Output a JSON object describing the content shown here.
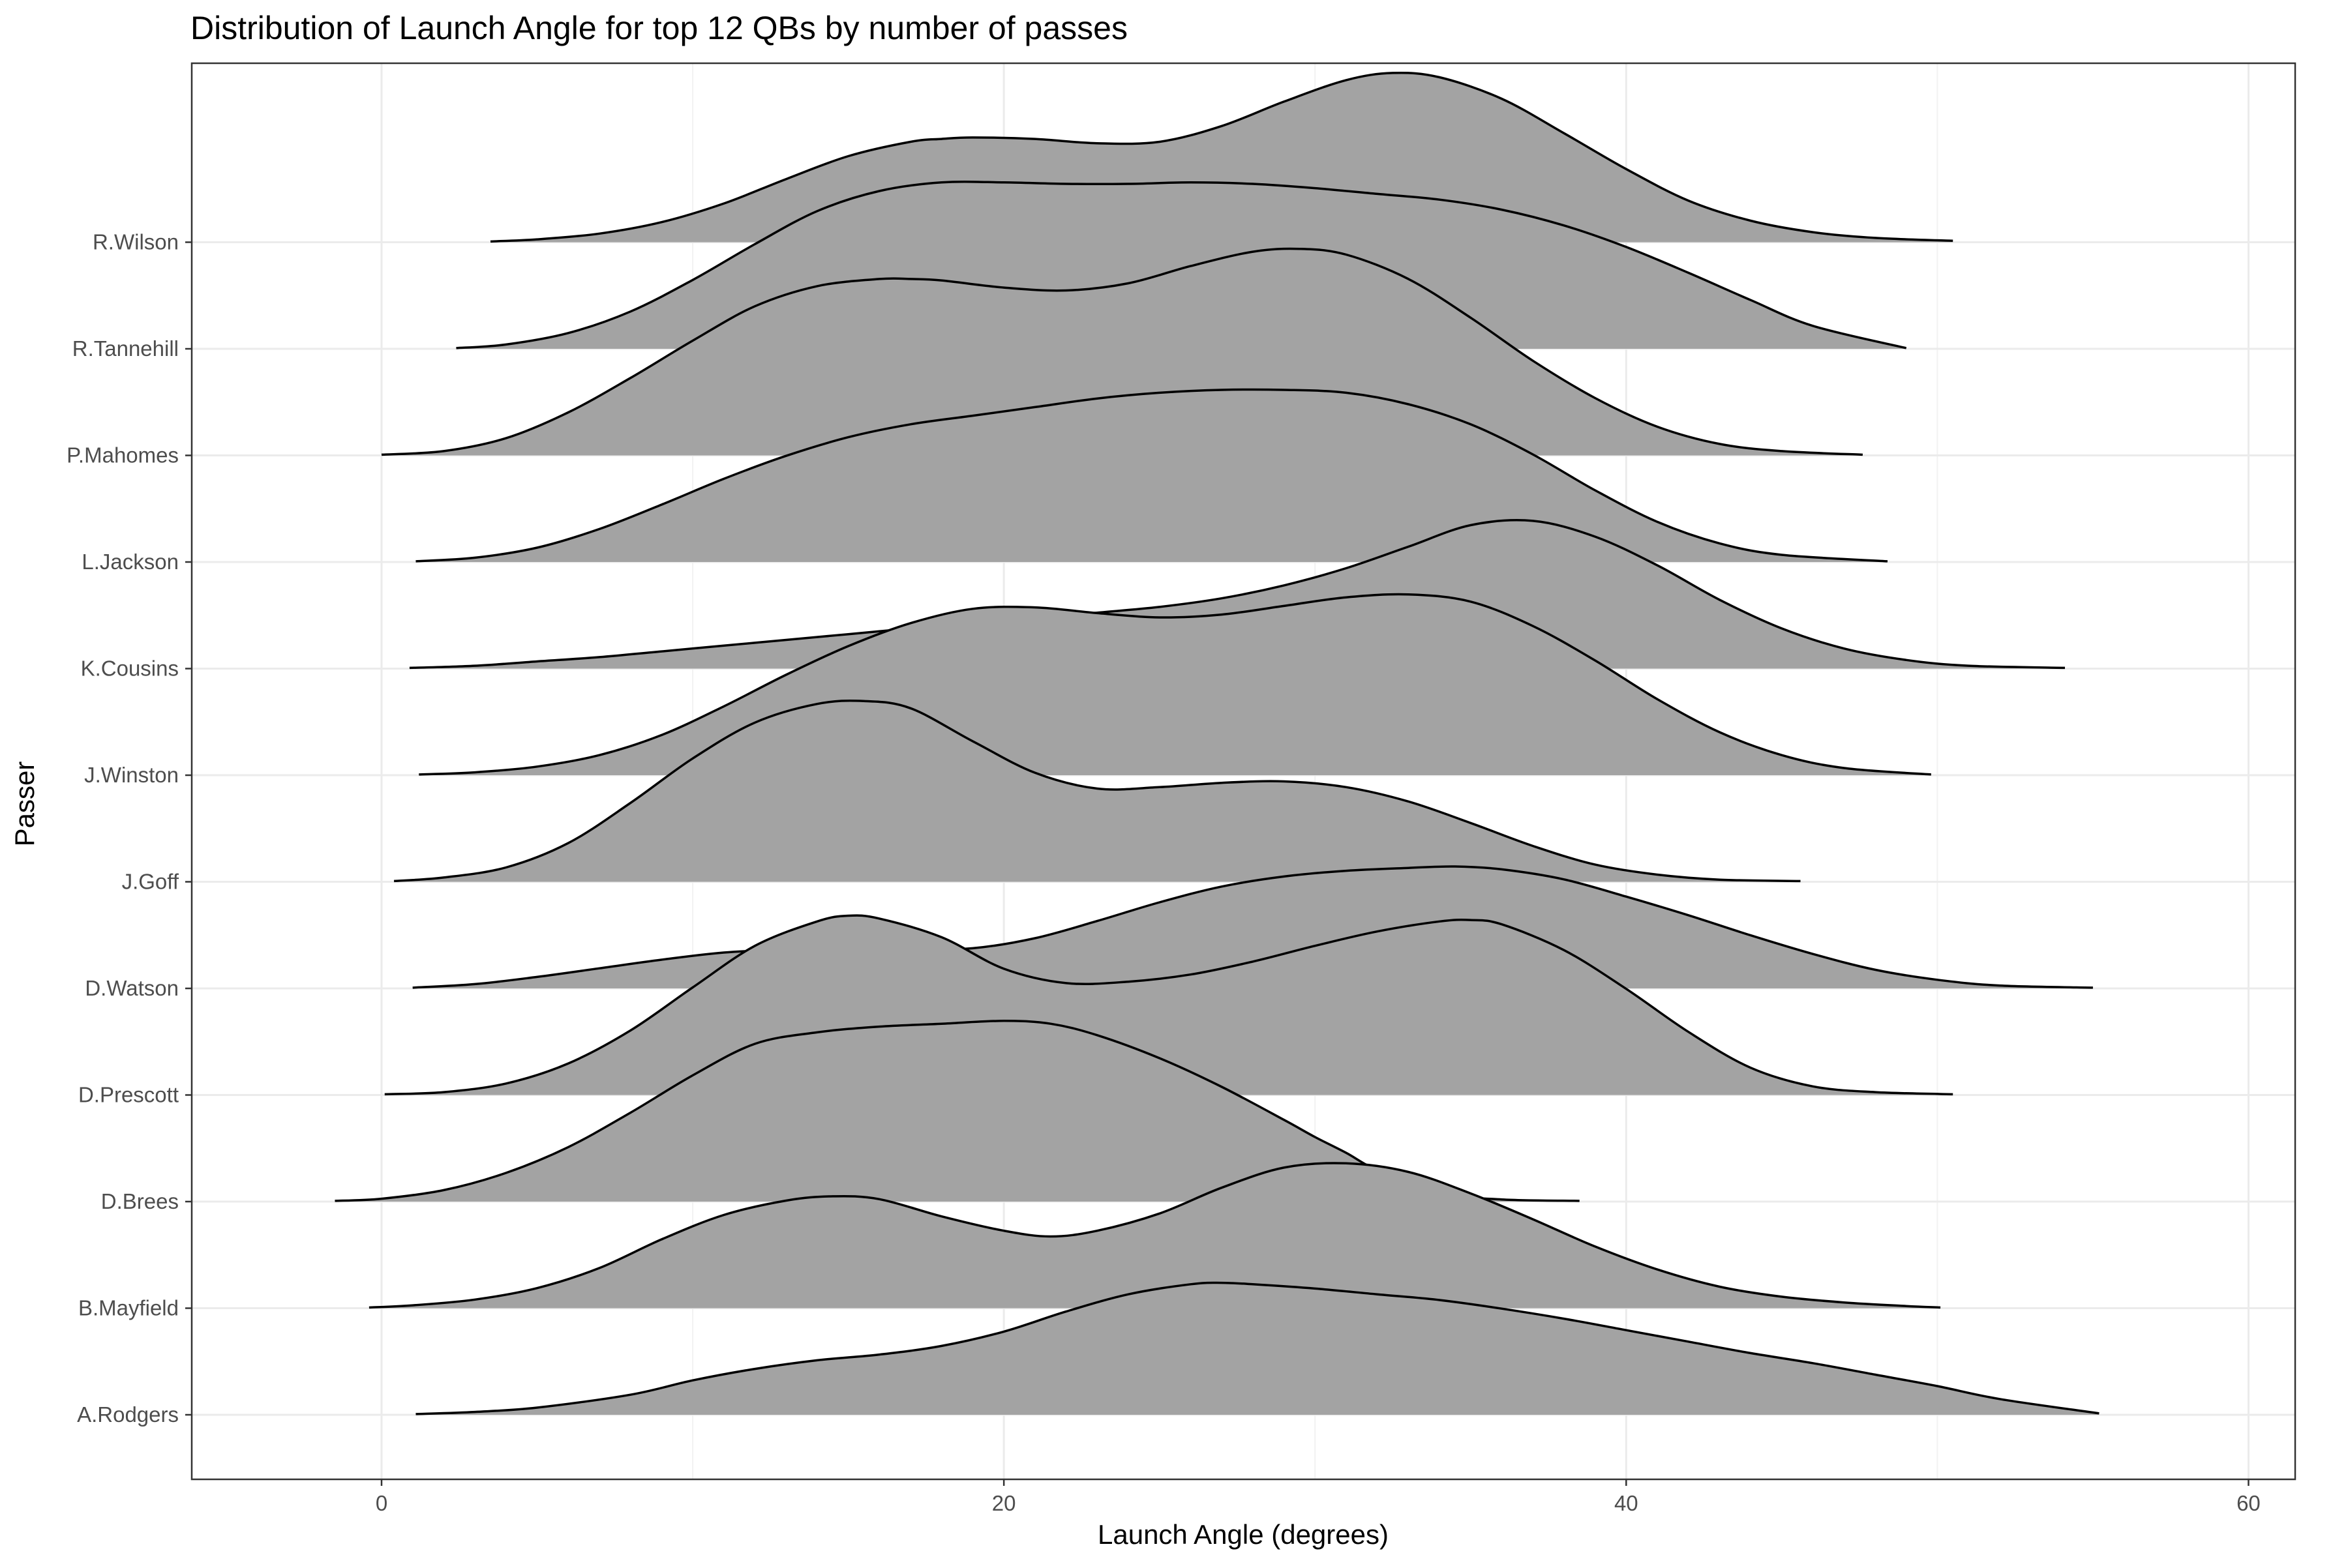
{
  "chart_data": {
    "type": "ridgeline",
    "title": "Distribution of Launch Angle for top 12 QBs by number of passes",
    "xlabel": "Launch Angle (degrees)",
    "ylabel": "Passer",
    "xlim": [
      -6.1,
      61.5
    ],
    "x_ticks": [
      0,
      20,
      40,
      60
    ],
    "x_tick_labels": [
      "0",
      "20",
      "40",
      "60"
    ],
    "grid": true,
    "fill_color": "#a3a3a3",
    "outline_color": "#000000",
    "passers": [
      "A.Rodgers",
      "B.Mayfield",
      "D.Brees",
      "D.Prescott",
      "D.Watson",
      "J.Goff",
      "J.Winston",
      "K.Cousins",
      "L.Jackson",
      "P.Mahomes",
      "R.Tannehill",
      "R.Wilson"
    ],
    "series": [
      {
        "name": "A.Rodgers",
        "x": [
          1.1,
          3,
          5,
          8,
          10,
          12,
          14,
          16,
          18,
          20,
          22,
          24,
          26,
          27,
          28,
          30,
          32,
          34,
          36,
          38,
          40,
          42,
          44,
          46,
          48,
          50,
          52,
          55.2
        ],
        "density": [
          0.5,
          2,
          5,
          14,
          24,
          32,
          38,
          42,
          48,
          58,
          72,
          84,
          91,
          92,
          91,
          88,
          84,
          80,
          74,
          67,
          59,
          51,
          43,
          36,
          28,
          20,
          11,
          1
        ]
      },
      {
        "name": "B.Mayfield",
        "x": [
          -0.4,
          1,
          3,
          5,
          7,
          9,
          11,
          13,
          14.5,
          16,
          18,
          20,
          21.5,
          23,
          25,
          27,
          29,
          31,
          33,
          35,
          37,
          39,
          41,
          43,
          45,
          47,
          49,
          50.1
        ],
        "density": [
          0.5,
          2,
          6,
          14,
          28,
          48,
          65,
          75,
          78,
          76,
          64,
          54,
          50,
          54,
          66,
          84,
          98,
          101,
          95,
          80,
          62,
          43,
          27,
          15,
          8,
          4,
          1.5,
          0.5
        ]
      },
      {
        "name": "D.Brees",
        "x": [
          -1.5,
          0,
          2,
          4,
          6,
          8,
          10,
          12,
          14,
          16,
          18,
          20,
          21.5,
          23,
          25,
          27,
          29,
          30,
          31,
          32,
          34,
          36,
          38.5
        ],
        "density": [
          0.5,
          2,
          8,
          20,
          38,
          62,
          88,
          110,
          118,
          122,
          124,
          126,
          124,
          116,
          100,
          80,
          57,
          45,
          34,
          22,
          6,
          1.5,
          0.5
        ]
      },
      {
        "name": "D.Prescott",
        "x": [
          0.1,
          2,
          4,
          6,
          8,
          10,
          12,
          14,
          15,
          16,
          18,
          20,
          22,
          24,
          26,
          28,
          30,
          32,
          34,
          35,
          36,
          38,
          40,
          42,
          44,
          46,
          48,
          50.5
        ],
        "density": [
          0.5,
          2,
          8,
          22,
          45,
          75,
          104,
          121,
          125,
          123,
          110,
          88,
          78,
          79,
          84,
          93,
          104,
          114,
          121,
          122,
          119,
          101,
          74,
          44,
          19,
          6,
          2,
          0.5
        ]
      },
      {
        "name": "D.Watson",
        "x": [
          1,
          3,
          5,
          7,
          9,
          11,
          13,
          15,
          17,
          19,
          21,
          23,
          25,
          27,
          29,
          31,
          33,
          34.5,
          36,
          38,
          40,
          42,
          44,
          46,
          48,
          50,
          52,
          55
        ],
        "density": [
          0.5,
          3,
          8,
          14,
          20,
          25,
          27,
          27.5,
          27,
          28,
          35,
          47,
          60,
          71,
          78,
          82,
          84,
          85,
          83,
          76,
          64,
          51,
          37,
          24,
          13,
          6,
          2,
          0.5
        ]
      },
      {
        "name": "J.Goff",
        "x": [
          0.4,
          2,
          4,
          6,
          8,
          10,
          12,
          14,
          15.5,
          17,
          19,
          21,
          23,
          25,
          27,
          29,
          31,
          33,
          35,
          37,
          39,
          41,
          43,
          45.6
        ],
        "density": [
          0.5,
          3,
          10,
          27,
          55,
          86,
          111,
          124,
          126,
          121,
          98,
          76,
          65,
          66,
          69,
          70,
          66,
          56,
          41,
          25,
          12,
          5,
          1.5,
          0.5
        ]
      },
      {
        "name": "J.Winston",
        "x": [
          1.2,
          3,
          5,
          7,
          9,
          11,
          13,
          15,
          17,
          19,
          21,
          23,
          25,
          27,
          29,
          31,
          33,
          35,
          37,
          39,
          41,
          43,
          45,
          47,
          49.8
        ],
        "density": [
          0.5,
          2,
          6,
          14,
          28,
          48,
          70,
          90,
          106,
          116,
          117,
          113,
          110,
          112,
          118,
          124,
          126,
          121,
          104,
          80,
          53,
          30,
          14,
          5,
          0.5
        ]
      },
      {
        "name": "K.Cousins",
        "x": [
          0.9,
          3,
          5,
          7,
          9,
          11,
          13,
          15,
          17,
          19,
          21,
          23,
          25,
          27,
          29,
          31,
          33,
          35,
          37,
          39,
          41,
          43,
          45,
          47,
          49,
          51,
          54.1
        ],
        "density": [
          0.5,
          2,
          5,
          8,
          12,
          16,
          20,
          24,
          28,
          32,
          35,
          39,
          43,
          49,
          58,
          70,
          85,
          100,
          103,
          92,
          72,
          48,
          28,
          14,
          6,
          2,
          0.5
        ]
      },
      {
        "name": "L.Jackson",
        "x": [
          1.1,
          3,
          5,
          7,
          9,
          11,
          13,
          15,
          17,
          19,
          21,
          23,
          25,
          27,
          29,
          31,
          33,
          35,
          37,
          39,
          41,
          43,
          45,
          48.4
        ],
        "density": [
          0.5,
          3,
          10,
          23,
          40,
          58,
          74,
          87,
          96,
          102,
          108,
          114,
          118,
          120,
          120,
          118,
          110,
          96,
          75,
          50,
          28,
          13,
          5,
          0.5
        ]
      },
      {
        "name": "P.Mahomes",
        "x": [
          0,
          2,
          4,
          6,
          8,
          10,
          12,
          14,
          16,
          17,
          18,
          20,
          22,
          24,
          26,
          28,
          29.5,
          31,
          33,
          35,
          37,
          39,
          41,
          43,
          45,
          47.6
        ],
        "density": [
          0.5,
          3,
          12,
          30,
          54,
          80,
          104,
          118,
          123,
          123,
          122,
          117,
          115,
          120,
          132,
          142,
          144,
          140,
          123,
          96,
          66,
          40,
          20,
          8,
          3,
          0.5
        ]
      },
      {
        "name": "R.Tannehill",
        "x": [
          2.4,
          4,
          6,
          8,
          10,
          12,
          14,
          16,
          18,
          20,
          22,
          24,
          26,
          28,
          30,
          32,
          34,
          36,
          38,
          40,
          42,
          44,
          46,
          49
        ],
        "density": [
          0.5,
          3,
          11,
          26,
          48,
          73,
          96,
          110,
          116,
          116,
          115,
          115,
          116,
          115,
          112,
          108,
          104,
          97,
          86,
          71,
          53,
          34,
          16,
          0.5
        ]
      },
      {
        "name": "R.Wilson",
        "x": [
          3.5,
          5,
          7,
          9,
          11,
          13,
          15,
          17,
          18,
          19,
          21,
          23,
          25,
          27,
          29,
          31,
          32.5,
          34,
          36,
          38,
          40,
          42,
          44,
          46,
          48,
          50.5
        ],
        "density": [
          0.5,
          2,
          6,
          14,
          27,
          44,
          60,
          70,
          72,
          73,
          72,
          69,
          70,
          81,
          98,
          113,
          118,
          115,
          100,
          76,
          51,
          29,
          15,
          7,
          3,
          1
        ]
      }
    ]
  }
}
